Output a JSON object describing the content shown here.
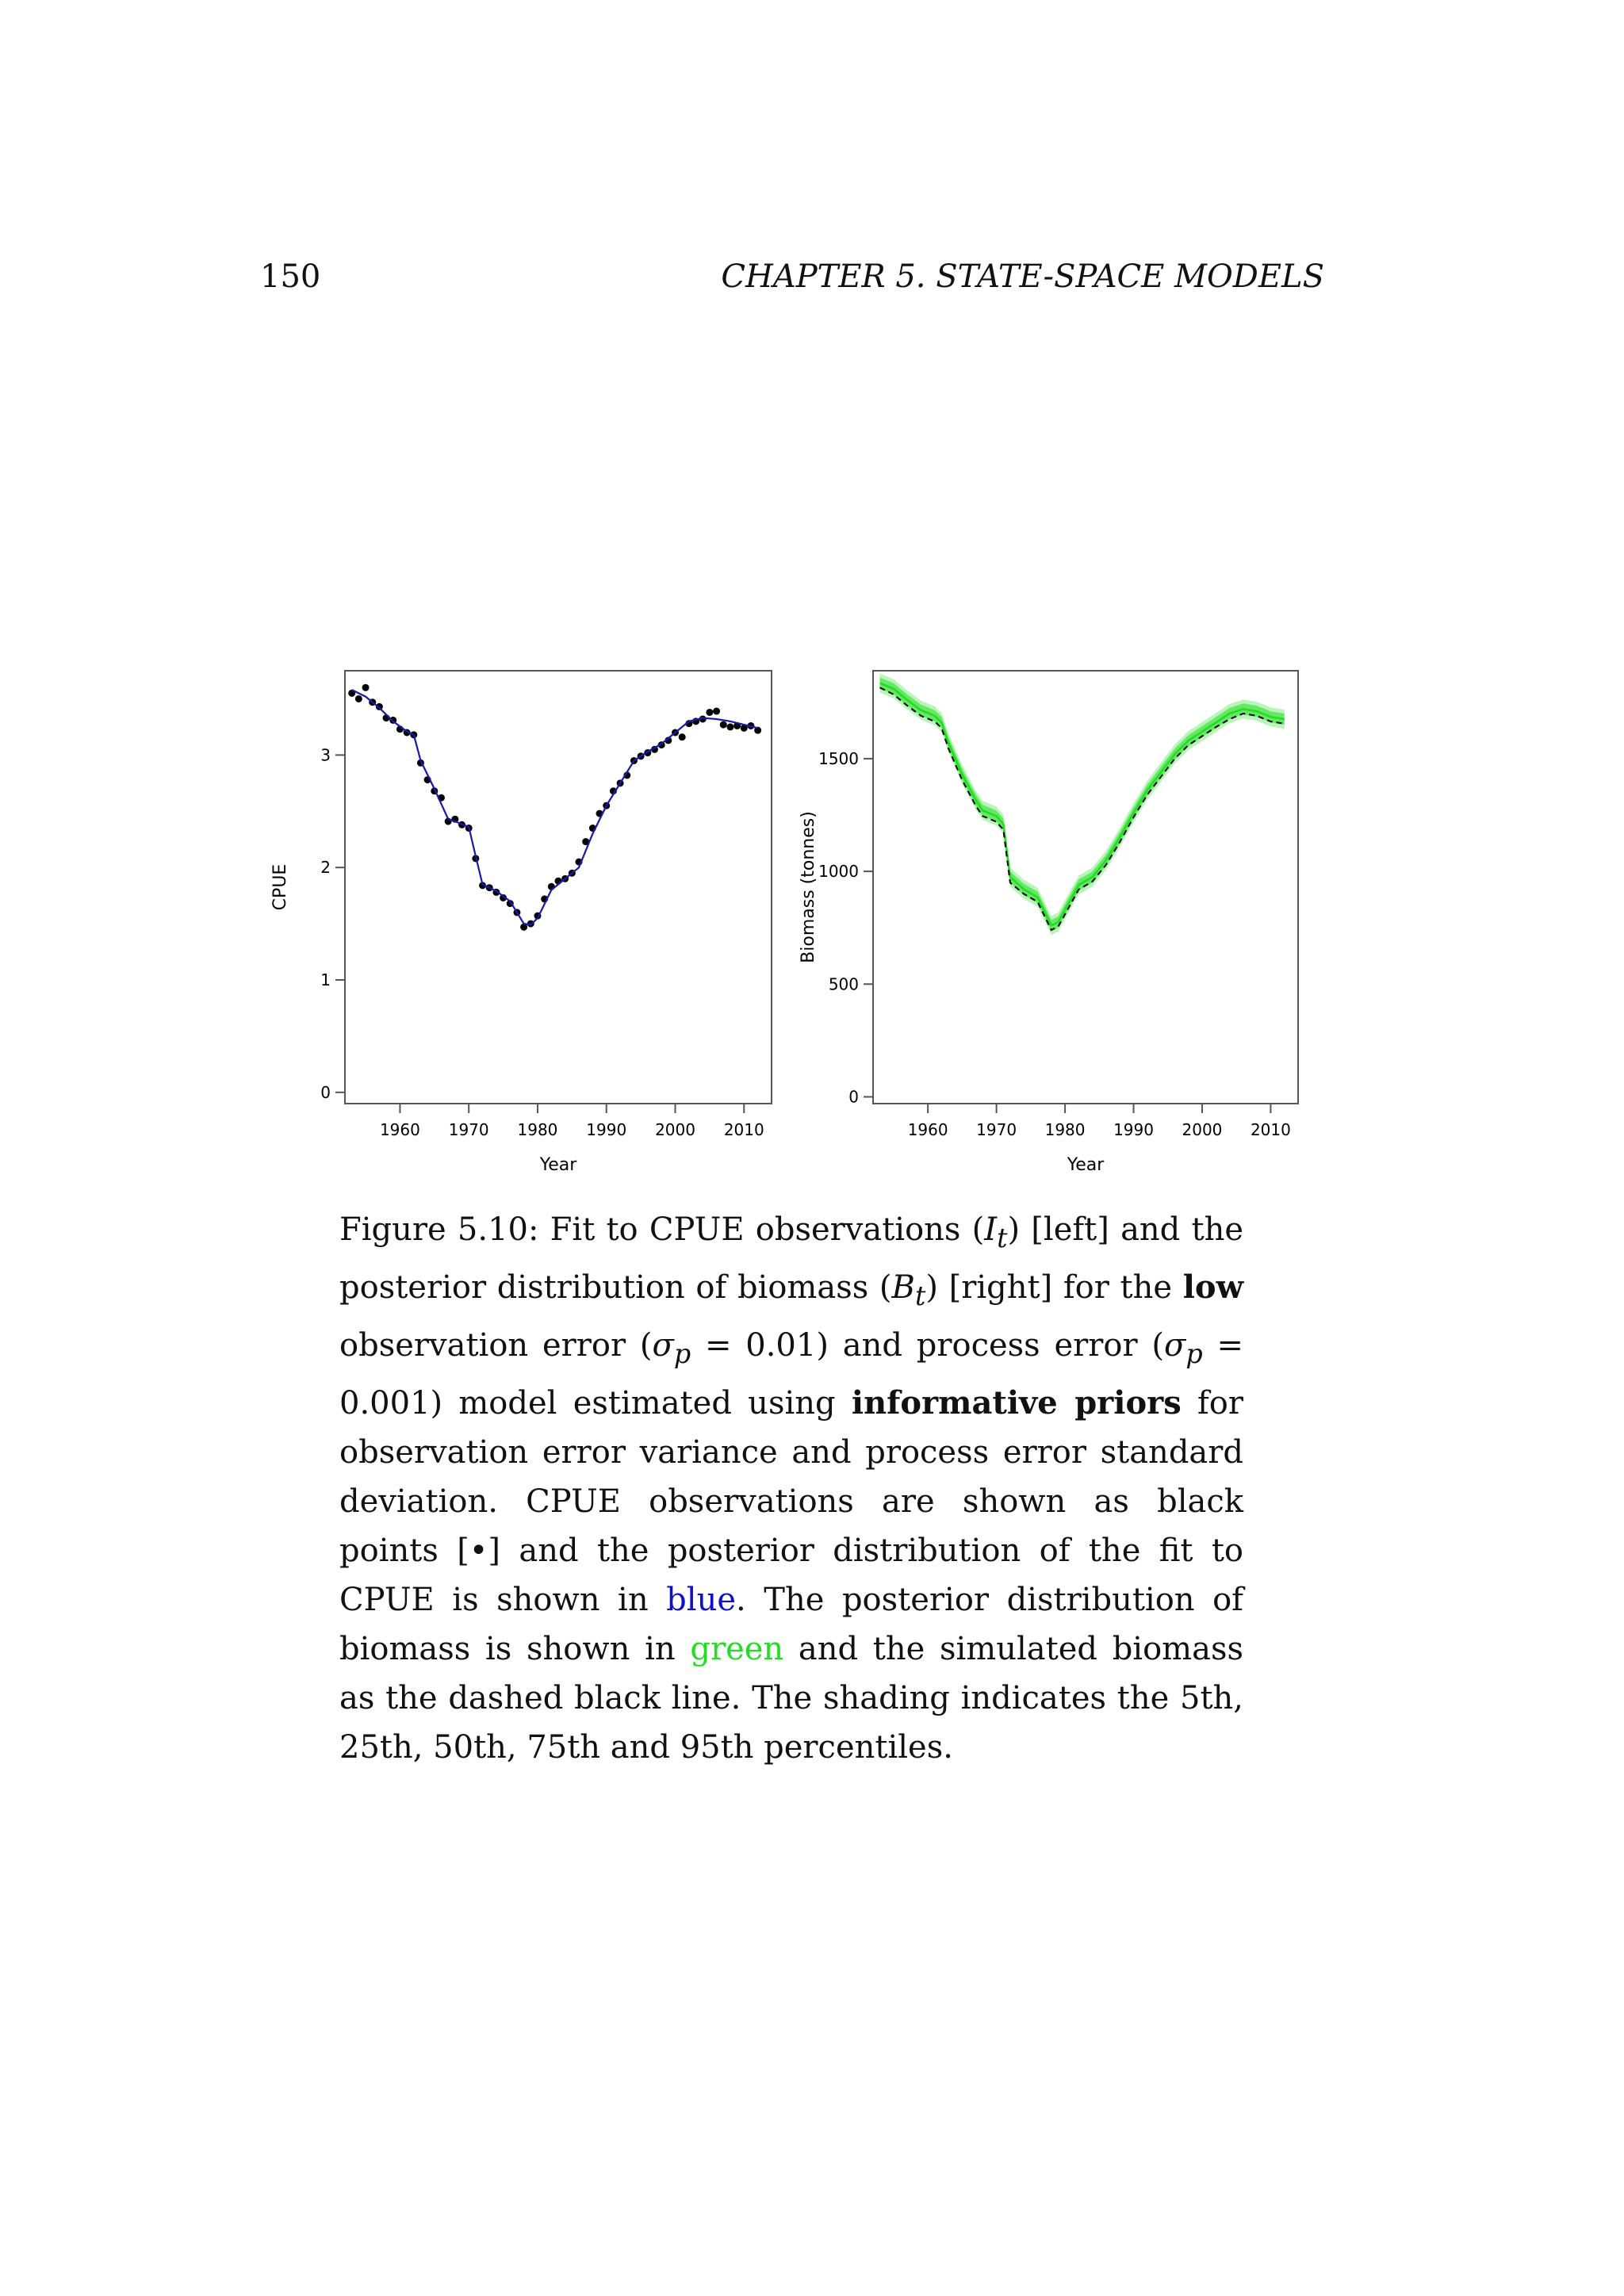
{
  "header": {
    "page_number": "150",
    "running_head": "CHAPTER 5.  STATE-SPACE MODELS"
  },
  "chart_data": [
    {
      "type": "line",
      "panel": "left",
      "xlabel": "Year",
      "ylabel": "CPUE",
      "xlim": [
        1952,
        2014
      ],
      "ylim": [
        -0.1,
        3.75
      ],
      "xticks": [
        1960,
        1970,
        1980,
        1990,
        2000,
        2010
      ],
      "yticks": [
        0,
        1,
        2,
        3
      ],
      "series": [
        {
          "role": "observations",
          "kind": "points",
          "color": "#000000",
          "x": [
            1953,
            1954,
            1955,
            1956,
            1957,
            1958,
            1959,
            1960,
            1961,
            1962,
            1963,
            1964,
            1965,
            1966,
            1967,
            1968,
            1969,
            1970,
            1971,
            1972,
            1973,
            1974,
            1975,
            1976,
            1977,
            1978,
            1979,
            1980,
            1981,
            1982,
            1983,
            1984,
            1985,
            1986,
            1987,
            1988,
            1989,
            1990,
            1991,
            1992,
            1993,
            1994,
            1995,
            1996,
            1997,
            1998,
            1999,
            2000,
            2001,
            2002,
            2003,
            2004,
            2005,
            2006,
            2007,
            2008,
            2009,
            2010,
            2011,
            2012
          ],
          "y": [
            3.55,
            3.5,
            3.6,
            3.47,
            3.43,
            3.33,
            3.31,
            3.23,
            3.2,
            3.18,
            2.93,
            2.78,
            2.68,
            2.62,
            2.41,
            2.43,
            2.38,
            2.35,
            2.08,
            1.84,
            1.82,
            1.78,
            1.73,
            1.68,
            1.6,
            1.47,
            1.5,
            1.57,
            1.72,
            1.83,
            1.88,
            1.9,
            1.95,
            2.05,
            2.23,
            2.35,
            2.48,
            2.55,
            2.68,
            2.75,
            2.82,
            2.95,
            2.99,
            3.02,
            3.05,
            3.09,
            3.13,
            3.2,
            3.16,
            3.28,
            3.3,
            3.32,
            3.38,
            3.39,
            3.27,
            3.25,
            3.26,
            3.24,
            3.26,
            3.22
          ]
        },
        {
          "role": "fit",
          "kind": "line",
          "color": "#1a1aa8",
          "x": [
            1953,
            1955,
            1957,
            1959,
            1961,
            1962,
            1963,
            1965,
            1967,
            1968,
            1970,
            1971,
            1972,
            1974,
            1976,
            1978,
            1979,
            1980,
            1982,
            1984,
            1986,
            1988,
            1990,
            1992,
            1994,
            1996,
            1998,
            2000,
            2002,
            2004,
            2006,
            2008,
            2010,
            2012
          ],
          "y": [
            3.58,
            3.52,
            3.42,
            3.3,
            3.21,
            3.18,
            2.95,
            2.7,
            2.43,
            2.41,
            2.36,
            2.1,
            1.85,
            1.79,
            1.7,
            1.5,
            1.49,
            1.55,
            1.8,
            1.9,
            2.0,
            2.3,
            2.55,
            2.75,
            2.95,
            3.03,
            3.1,
            3.2,
            3.3,
            3.33,
            3.32,
            3.3,
            3.27,
            3.24
          ]
        }
      ]
    },
    {
      "type": "line",
      "panel": "right",
      "xlabel": "Year",
      "ylabel": "Biomass (tonnes)",
      "xlim": [
        1952,
        2014
      ],
      "ylim": [
        -30,
        1890
      ],
      "xticks": [
        1960,
        1970,
        1980,
        1990,
        2000,
        2010
      ],
      "yticks": [
        0,
        500,
        1000,
        1500
      ],
      "series": [
        {
          "role": "posterior",
          "kind": "band",
          "color": "#22dd22",
          "x": [
            1953,
            1955,
            1957,
            1959,
            1961,
            1962,
            1963,
            1965,
            1967,
            1968,
            1970,
            1971,
            1972,
            1974,
            1976,
            1978,
            1979,
            1980,
            1982,
            1984,
            1986,
            1988,
            1990,
            1992,
            1994,
            1996,
            1998,
            2000,
            2002,
            2004,
            2006,
            2008,
            2010,
            2012
          ],
          "y": [
            1835,
            1810,
            1760,
            1715,
            1690,
            1660,
            1570,
            1430,
            1315,
            1270,
            1245,
            1210,
            975,
            920,
            885,
            760,
            775,
            830,
            940,
            975,
            1050,
            1150,
            1260,
            1360,
            1440,
            1520,
            1580,
            1620,
            1660,
            1700,
            1720,
            1710,
            1685,
            1675
          ]
        },
        {
          "role": "simulated",
          "kind": "dashed",
          "color": "#000000",
          "x": [
            1953,
            1955,
            1957,
            1959,
            1961,
            1962,
            1963,
            1965,
            1967,
            1968,
            1970,
            1971,
            1972,
            1974,
            1976,
            1978,
            1979,
            1980,
            1982,
            1984,
            1986,
            1988,
            1990,
            1992,
            1994,
            1996,
            1998,
            2000,
            2002,
            2004,
            2006,
            2008,
            2010,
            2012
          ],
          "y": [
            1815,
            1785,
            1735,
            1690,
            1665,
            1635,
            1545,
            1405,
            1290,
            1245,
            1220,
            1185,
            950,
            900,
            865,
            740,
            755,
            810,
            920,
            955,
            1030,
            1130,
            1240,
            1340,
            1420,
            1500,
            1560,
            1600,
            1640,
            1675,
            1700,
            1690,
            1665,
            1655
          ]
        }
      ]
    }
  ],
  "caption": {
    "p1": "Figure 5.10: Fit to CPUE observations (",
    "m1": "I",
    "s1": "t",
    "p2": ") [left] and the posterior distribution of biomass (",
    "m2": "B",
    "s2": "t",
    "p3": ") [right] for the ",
    "b1": "low",
    "p4": " observation error (",
    "m3": "σ",
    "s3": "p",
    "p5": " = 0.01) and process error (",
    "m4": "σ",
    "s4": "p",
    "p6": " = 0.001) model estimated using ",
    "b2": "informative priors",
    "p7": " for observation error variance and process error standard deviation. CPUE observations are shown as black points [•] and the posterior distribution of the fit to CPUE is shown in ",
    "blue_word": "blue",
    "p8": ". The posterior distribution of biomass is shown in ",
    "green_word": "green",
    "p9": " and the simulated biomass as the dashed black line.  The shading indicates the 5th, 25th, 50th, 75th and 95th percentiles."
  }
}
